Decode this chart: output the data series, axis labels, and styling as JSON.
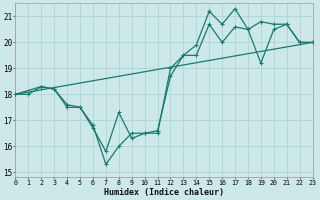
{
  "xlabel": "Humidex (Indice chaleur)",
  "xlim": [
    0,
    23
  ],
  "ylim": [
    14.8,
    21.5
  ],
  "yticks": [
    15,
    16,
    17,
    18,
    19,
    20,
    21
  ],
  "xticks": [
    0,
    1,
    2,
    3,
    4,
    5,
    6,
    7,
    8,
    9,
    10,
    11,
    12,
    13,
    14,
    15,
    16,
    17,
    18,
    19,
    20,
    21,
    22,
    23
  ],
  "bg_color": "#cce8e8",
  "grid_color": "#b0d8d8",
  "line_color": "#1a7a6e",
  "curve1_x": [
    0,
    1,
    2,
    3,
    4,
    5,
    6,
    7,
    8,
    9,
    10,
    11,
    12,
    13,
    14,
    15,
    16,
    17,
    18,
    19,
    20,
    21,
    22,
    23
  ],
  "curve1_y": [
    18.0,
    18.0,
    18.3,
    18.2,
    17.6,
    17.5,
    16.7,
    15.8,
    17.3,
    16.3,
    16.5,
    16.6,
    18.7,
    19.5,
    19.9,
    21.2,
    20.7,
    21.3,
    20.5,
    20.8,
    20.7,
    20.7,
    20.0,
    20.0
  ],
  "curve2_x": [
    0,
    2,
    3,
    4,
    5,
    6,
    7,
    8,
    9,
    10,
    11,
    12,
    13,
    14,
    15,
    16,
    17,
    18,
    19,
    20,
    21,
    22,
    23
  ],
  "curve2_y": [
    18.0,
    18.3,
    18.2,
    17.5,
    17.5,
    16.8,
    15.3,
    16.0,
    16.5,
    16.5,
    16.5,
    19.0,
    19.5,
    19.5,
    20.7,
    20.0,
    20.6,
    20.5,
    19.2,
    20.5,
    20.7,
    20.0,
    20.0
  ],
  "line3_x": [
    0,
    23
  ],
  "line3_y": [
    18.0,
    20.0
  ]
}
